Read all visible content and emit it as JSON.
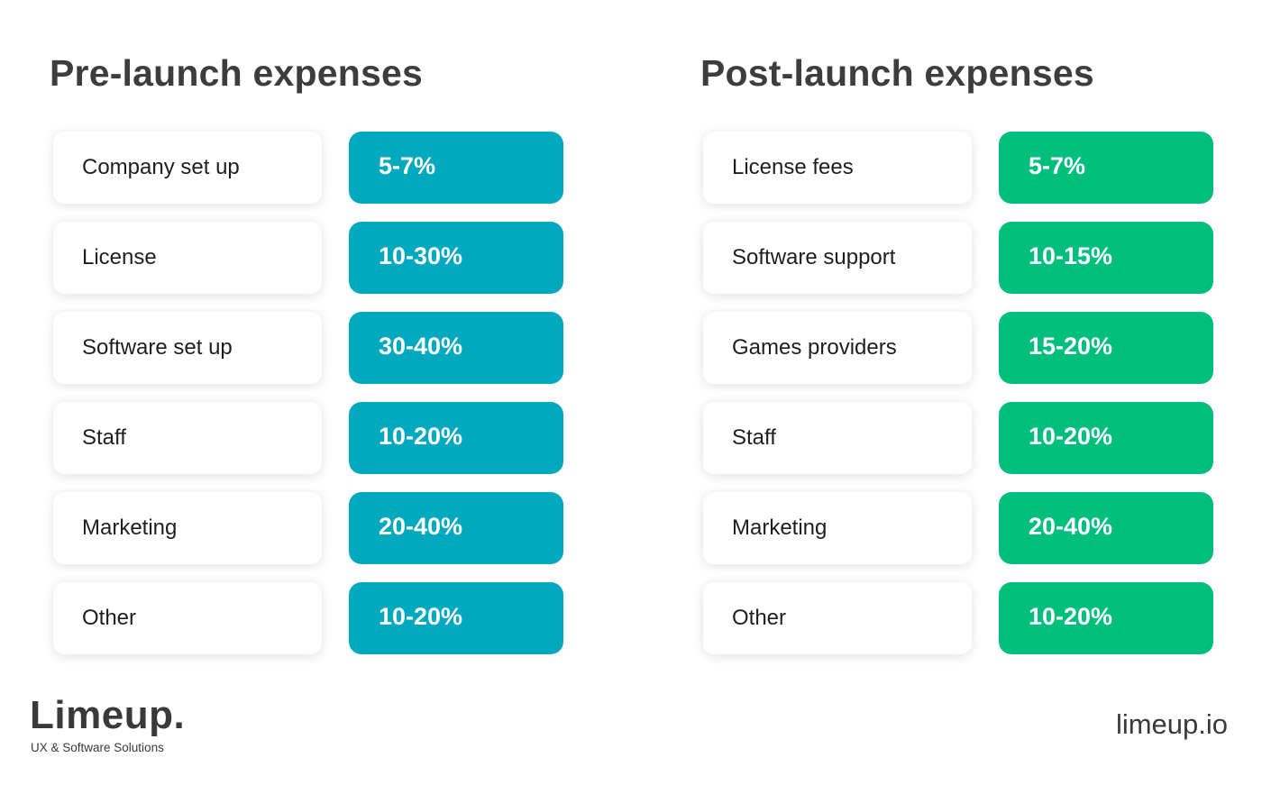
{
  "pre_launch": {
    "title": "Pre-launch expenses",
    "accent_color": "#00a9bd",
    "rows": [
      {
        "label": "Company set up",
        "value": "5-7%"
      },
      {
        "label": "License",
        "value": "10-30%"
      },
      {
        "label": "Software set up",
        "value": "30-40%"
      },
      {
        "label": "Staff",
        "value": "10-20%"
      },
      {
        "label": "Marketing",
        "value": "20-40%"
      },
      {
        "label": "Other",
        "value": "10-20%"
      }
    ]
  },
  "post_launch": {
    "title": "Post-launch expenses",
    "accent_color": "#00bf7d",
    "rows": [
      {
        "label": "License fees",
        "value": "5-7%"
      },
      {
        "label": "Software support",
        "value": "10-15%"
      },
      {
        "label": "Games providers",
        "value": "15-20%"
      },
      {
        "label": "Staff",
        "value": "10-20%"
      },
      {
        "label": "Marketing",
        "value": "20-40%"
      },
      {
        "label": "Other",
        "value": "10-20%"
      }
    ]
  },
  "brand": {
    "logo_text": "Limeup.",
    "tagline": "UX & Software Solutions",
    "site_url": "limeup.io"
  }
}
